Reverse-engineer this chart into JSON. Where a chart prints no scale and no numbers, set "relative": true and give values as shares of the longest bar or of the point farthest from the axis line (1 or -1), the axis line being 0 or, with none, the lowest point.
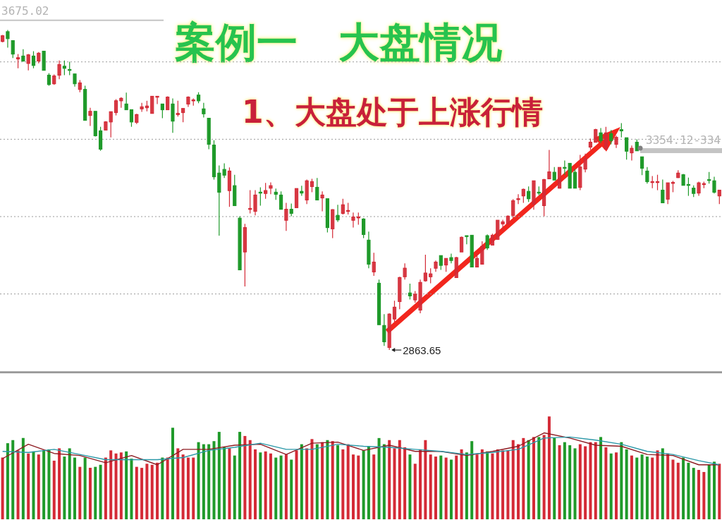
{
  "chart_data": [
    {
      "type": "candlestick",
      "title": "案例一　大盘情况",
      "subtitle": "1、大盘处于上涨行情",
      "categories": [
        null,
        null,
        null,
        null,
        null,
        null,
        null,
        null,
        null,
        null,
        null,
        null,
        null,
        null,
        null,
        null,
        null,
        null,
        null,
        null,
        null,
        null,
        null,
        null,
        null,
        null,
        null,
        null,
        null,
        null,
        null,
        null,
        null,
        null,
        null,
        null,
        null,
        null,
        null,
        null,
        null,
        null,
        null,
        null,
        null,
        null,
        null,
        null,
        null,
        null,
        null,
        null,
        null,
        null,
        null,
        null,
        null,
        null,
        null,
        null,
        null,
        null,
        null,
        null,
        null,
        null,
        null,
        null,
        null,
        null,
        null,
        null,
        null,
        null,
        null,
        null,
        null,
        null,
        null,
        null,
        null,
        null,
        null,
        null,
        null,
        null,
        null,
        null,
        null,
        null,
        null,
        null,
        null,
        null,
        null,
        null,
        null,
        null,
        null,
        null,
        null,
        null,
        null,
        null,
        null,
        null,
        null,
        null,
        null,
        null,
        null,
        null,
        null,
        null,
        null,
        null,
        null,
        null,
        null,
        null,
        null,
        null,
        null,
        null,
        null,
        null,
        null,
        null,
        null,
        null,
        null,
        null,
        null,
        null,
        null,
        null,
        null,
        null,
        null,
        null
      ],
      "ohlc": [
        [
          3623,
          3639,
          3621,
          3637
        ],
        [
          3647,
          3651,
          3608,
          3630
        ],
        [
          3625,
          3625,
          3582,
          3592
        ],
        [
          3580,
          3592,
          3557,
          3583
        ],
        [
          3587,
          3604,
          3573,
          3575
        ],
        [
          3569,
          3592,
          3552,
          3590
        ],
        [
          3587,
          3599,
          3557,
          3564
        ],
        [
          3575,
          3597,
          3569,
          3594
        ],
        [
          3599,
          3599,
          3552,
          3552
        ],
        [
          3540,
          3545,
          3514,
          3517
        ],
        [
          3519,
          3542,
          3516,
          3538
        ],
        [
          3540,
          3576,
          3530,
          3566
        ],
        [
          3562,
          3576,
          3540,
          3557
        ],
        [
          3554,
          3573,
          3540,
          3552
        ],
        [
          3543,
          3543,
          3512,
          3519
        ],
        [
          3505,
          3528,
          3498,
          3521
        ],
        [
          3505,
          3514,
          3429,
          3429
        ],
        [
          3441,
          3460,
          3415,
          3451
        ],
        [
          3451,
          3451,
          3389,
          3391
        ],
        [
          3403,
          3413,
          3354,
          3358
        ],
        [
          3405,
          3427,
          3405,
          3425
        ],
        [
          3425,
          3450,
          3387,
          3450
        ],
        [
          3448,
          3481,
          3441,
          3477
        ],
        [
          3477,
          3486,
          3460,
          3483
        ],
        [
          3469,
          3497,
          3455,
          3455
        ],
        [
          3455,
          3455,
          3413,
          3425
        ],
        [
          3424,
          3445,
          3420,
          3443
        ],
        [
          3457,
          3472,
          3450,
          3462
        ],
        [
          3460,
          3477,
          3451,
          3464
        ],
        [
          3446,
          3488,
          3446,
          3488
        ],
        [
          3488,
          3488,
          3469,
          3488
        ],
        [
          3469,
          3469,
          3434,
          3455
        ],
        [
          3455,
          3488,
          3455,
          3486
        ],
        [
          3469,
          3483,
          3398,
          3427
        ],
        [
          3443,
          3477,
          3438,
          3446
        ],
        [
          3448,
          3458,
          3424,
          3458
        ],
        [
          3469,
          3488,
          3462,
          3486
        ],
        [
          3477,
          3483,
          3465,
          3479
        ],
        [
          3491,
          3498,
          3471,
          3477
        ],
        [
          3457,
          3472,
          3436,
          3445
        ],
        [
          3434,
          3434,
          3358,
          3370
        ],
        [
          3368,
          3380,
          3283,
          3290
        ],
        [
          3299,
          3318,
          3145,
          3252
        ],
        [
          3308,
          3323,
          3287,
          3294
        ],
        [
          3256,
          3313,
          3216,
          3304
        ],
        [
          3268,
          3295,
          3219,
          3219
        ],
        [
          3188,
          3193,
          3061,
          3061
        ],
        [
          3105,
          3174,
          3020,
          3165
        ],
        [
          3210,
          3257,
          3200,
          3212
        ],
        [
          3205,
          3257,
          3195,
          3245
        ],
        [
          3252,
          3264,
          3219,
          3250
        ],
        [
          3249,
          3275,
          3236,
          3256
        ],
        [
          3262,
          3276,
          3247,
          3268
        ],
        [
          3252,
          3261,
          3233,
          3247
        ],
        [
          3245,
          3254,
          3210,
          3210
        ],
        [
          3183,
          3226,
          3157,
          3210
        ],
        [
          3210,
          3224,
          3193,
          3200
        ],
        [
          3214,
          3261,
          3214,
          3261
        ],
        [
          3254,
          3268,
          3243,
          3250
        ],
        [
          3233,
          3283,
          3223,
          3280
        ],
        [
          3266,
          3285,
          3252,
          3278
        ],
        [
          3264,
          3287,
          3233,
          3233
        ],
        [
          3238,
          3254,
          3205,
          3245
        ],
        [
          3236,
          3236,
          3153,
          3165
        ],
        [
          3162,
          3210,
          3139,
          3209
        ],
        [
          3195,
          3221,
          3179,
          3184
        ],
        [
          3200,
          3236,
          3197,
          3221
        ],
        [
          3205,
          3226,
          3197,
          3207
        ],
        [
          3183,
          3202,
          3165,
          3191
        ],
        [
          3190,
          3202,
          3172,
          3191
        ],
        [
          3186,
          3188,
          3139,
          3148
        ],
        [
          3134,
          3155,
          3065,
          3075
        ],
        [
          3056,
          3103,
          3046,
          3080
        ],
        [
          3028,
          3037,
          2926,
          2926
        ],
        [
          2924,
          2952,
          2874,
          2884
        ],
        [
          2870,
          2954,
          2863.65,
          2952
        ],
        [
          2940,
          2985,
          2933,
          2969
        ],
        [
          2983,
          3044,
          2964,
          3042
        ],
        [
          3044,
          3077,
          3037,
          3065
        ],
        [
          3004,
          3027,
          2988,
          2997
        ],
        [
          2987,
          3009,
          2980,
          3001
        ],
        [
          2962,
          3037,
          2954,
          3030
        ],
        [
          3034,
          3098,
          3032,
          3053
        ],
        [
          3044,
          3065,
          3028,
          3051
        ],
        [
          3065,
          3084,
          3056,
          3080
        ],
        [
          3096,
          3096,
          3061,
          3072
        ],
        [
          3073,
          3089,
          3056,
          3089
        ],
        [
          3091,
          3101,
          3077,
          3084
        ],
        [
          3042,
          3093,
          3042,
          3091
        ],
        [
          3105,
          3143,
          3105,
          3141
        ],
        [
          3145,
          3145,
          3124,
          3143
        ],
        [
          3146,
          3146,
          3068,
          3068
        ],
        [
          3068,
          3101,
          3067,
          3089
        ],
        [
          3075,
          3131,
          3075,
          3119
        ],
        [
          3145,
          3148,
          3110,
          3115
        ],
        [
          3122,
          3150,
          3122,
          3146
        ],
        [
          3136,
          3183,
          3136,
          3183
        ],
        [
          3174,
          3184,
          3158,
          3179
        ],
        [
          3174,
          3195,
          3171,
          3193
        ],
        [
          3195,
          3235,
          3188,
          3231
        ],
        [
          3235,
          3247,
          3223,
          3236
        ],
        [
          3243,
          3261,
          3226,
          3259
        ],
        [
          3254,
          3266,
          3228,
          3236
        ],
        [
          3223,
          3280,
          3209,
          3280
        ],
        [
          3252,
          3266,
          3245,
          3250
        ],
        [
          3219,
          3285,
          3193,
          3283
        ],
        [
          3285,
          3356,
          3285,
          3302
        ],
        [
          3301,
          3314,
          3282,
          3282
        ],
        [
          3262,
          3313,
          3261,
          3313
        ],
        [
          3313,
          3330,
          3295,
          3311
        ],
        [
          3323,
          3323,
          3262,
          3262
        ],
        [
          3301,
          3309,
          3262,
          3262
        ],
        [
          3264,
          3344,
          3257,
          3314
        ],
        [
          3309,
          3347,
          3301,
          3335
        ],
        [
          3363,
          3384,
          3356,
          3375
        ],
        [
          3375,
          3408,
          3375,
          3406
        ],
        [
          3398,
          3410,
          3373,
          3379
        ],
        [
          3358,
          3413,
          3358,
          3398
        ],
        [
          3396,
          3405,
          3370,
          3379
        ],
        [
          3370,
          3391,
          3361,
          3387
        ],
        [
          3406,
          3422,
          3387,
          3403
        ],
        [
          3386,
          3386,
          3332,
          3353
        ],
        [
          3349,
          3367,
          3330,
          3360
        ],
        [
          3375,
          3382,
          3354,
          3354
        ],
        [
          3339,
          3339,
          3294,
          3311
        ],
        [
          3304,
          3314,
          3273,
          3278
        ],
        [
          3276,
          3292,
          3262,
          3278
        ],
        [
          3276,
          3295,
          3257,
          3278
        ],
        [
          3257,
          3283,
          3226,
          3226
        ],
        [
          3235,
          3275,
          3223,
          3275
        ],
        [
          3276,
          3280,
          3252,
          3276
        ],
        [
          3288,
          3306,
          3287,
          3299
        ],
        [
          3295,
          3297,
          3269,
          3269
        ],
        [
          3271,
          3288,
          3243,
          3269
        ],
        [
          3262,
          3269,
          3240,
          3249
        ],
        [
          3250,
          3278,
          3243,
          3275
        ],
        [
          3271,
          3278,
          3262,
          3273
        ],
        [
          3283,
          3302,
          3273,
          3282
        ],
        [
          3280,
          3290,
          3249,
          3252
        ],
        [
          3243,
          3257,
          3223,
          3257
        ]
      ],
      "colors": [
        "#d42a36",
        "#1f9a2a",
        "#1f9a2a",
        "#d42a36",
        "#1f9a2a",
        "#d42a36",
        "#1f9a2a",
        "#d42a36",
        "#1f9a2a",
        "#1f9a2a",
        "#d42a36",
        "#d42a36",
        "#1f9a2a",
        "#1f9a2a",
        "#1f9a2a",
        "#d42a36",
        "#1f9a2a",
        "#d42a36",
        "#1f9a2a",
        "#1f9a2a",
        "#d42a36",
        "#d42a36",
        "#d42a36",
        "#d42a36",
        "#1f9a2a",
        "#1f9a2a",
        "#d42a36",
        "#d42a36",
        "#d42a36",
        "#d42a36",
        "#d42a36",
        "#1f9a2a",
        "#d42a36",
        "#1f9a2a",
        "#d42a36",
        "#d42a36",
        "#d42a36",
        "#d42a36",
        "#1f9a2a",
        "#1f9a2a",
        "#1f9a2a",
        "#1f9a2a",
        "#1f9a2a",
        "#1f9a2a",
        "#d42a36",
        "#1f9a2a",
        "#1f9a2a",
        "#d42a36",
        "#d42a36",
        "#d42a36",
        "#1f9a2a",
        "#d42a36",
        "#d42a36",
        "#1f9a2a",
        "#1f9a2a",
        "#d42a36",
        "#1f9a2a",
        "#d42a36",
        "#1f9a2a",
        "#d42a36",
        "#d42a36",
        "#1f9a2a",
        "#d42a36",
        "#1f9a2a",
        "#d42a36",
        "#1f9a2a",
        "#d42a36",
        "#d42a36",
        "#d42a36",
        "#d42a36",
        "#1f9a2a",
        "#1f9a2a",
        "#d42a36",
        "#1f9a2a",
        "#1f9a2a",
        "#d42a36",
        "#d42a36",
        "#d42a36",
        "#d42a36",
        "#1f9a2a",
        "#d42a36",
        "#d42a36",
        "#d42a36",
        "#d42a36",
        "#d42a36",
        "#1f9a2a",
        "#d42a36",
        "#1f9a2a",
        "#d42a36",
        "#d42a36",
        "#1f9a2a",
        "#1f9a2a",
        "#d42a36",
        "#d42a36",
        "#1f9a2a",
        "#d42a36",
        "#d42a36",
        "#d42a36",
        "#d42a36",
        "#d42a36",
        "#d42a36",
        "#d42a36",
        "#1f9a2a",
        "#d42a36",
        "#1f9a2a",
        "#d42a36",
        "#d42a36",
        "#1f9a2a",
        "#d42a36",
        "#1f9a2a",
        "#1f9a2a",
        "#1f9a2a",
        "#d42a36",
        "#d42a36",
        "#d42a36",
        "#d42a36",
        "#1f9a2a",
        "#d42a36",
        "#1f9a2a",
        "#d42a36",
        "#1f9a2a",
        "#1f9a2a",
        "#d42a36",
        "#1f9a2a",
        "#1f9a2a",
        "#1f9a2a",
        "#d42a36",
        "#d42a36",
        "#1f9a2a",
        "#d42a36",
        "#d42a36",
        "#d42a36",
        "#1f9a2a",
        "#1f9a2a",
        "#1f9a2a",
        "#d42a36",
        "#d42a36",
        "#1f9a2a",
        "#1f9a2a",
        "#d42a36"
      ],
      "ylim": [
        2810,
        3725
      ],
      "yticks": [
        {
          "value": 3003,
          "label": null
        },
        {
          "value": 3193,
          "label": null
        },
        {
          "value": 3383,
          "label": null
        },
        {
          "value": 3573,
          "label": null
        }
      ],
      "grid": "y",
      "ref_lines": [
        {
          "axis": "y",
          "value": 3675.02,
          "label": "3675.02",
          "color": "#c4c4c4"
        },
        {
          "axis": "y",
          "value": 3354.12,
          "label": "3354.12-334",
          "color": "#c4c4c4"
        }
      ],
      "annotations": [
        "2863.65"
      ]
    },
    {
      "type": "bar",
      "relative": true,
      "categories": [
        null,
        null,
        null,
        null,
        null,
        null,
        null,
        null,
        null,
        null,
        null,
        null,
        null,
        null,
        null,
        null,
        null,
        null,
        null,
        null,
        null,
        null,
        null,
        null,
        null,
        null,
        null,
        null,
        null,
        null,
        null,
        null,
        null,
        null,
        null,
        null,
        null,
        null,
        null,
        null,
        null,
        null,
        null,
        null,
        null,
        null,
        null,
        null,
        null,
        null,
        null,
        null,
        null,
        null,
        null,
        null,
        null,
        null,
        null,
        null,
        null,
        null,
        null,
        null,
        null,
        null,
        null,
        null,
        null,
        null,
        null,
        null,
        null,
        null,
        null,
        null,
        null,
        null,
        null,
        null,
        null,
        null,
        null,
        null,
        null,
        null,
        null,
        null,
        null,
        null,
        null,
        null,
        null,
        null,
        null,
        null,
        null,
        null,
        null,
        null,
        null,
        null,
        null,
        null,
        null,
        null,
        null,
        null,
        null,
        null,
        null,
        null,
        null,
        null,
        null,
        null,
        null,
        null,
        null,
        null,
        null,
        null,
        null,
        null,
        null,
        null,
        null,
        null,
        null,
        null,
        null,
        null,
        null,
        null,
        null,
        null,
        null,
        null,
        null,
        null
      ],
      "series": [
        {
          "type": "bar",
          "values": [
            0.6,
            0.74,
            0.77,
            0.67,
            0.79,
            0.64,
            0.66,
            0.63,
            0.67,
            0.68,
            0.57,
            0.69,
            0.61,
            0.69,
            0.6,
            0.51,
            0.6,
            0.5,
            0.51,
            0.53,
            0.6,
            0.67,
            0.64,
            0.65,
            0.66,
            0.59,
            0.51,
            0.5,
            0.54,
            0.53,
            0.55,
            0.6,
            0.6,
            0.89,
            0.69,
            0.63,
            0.6,
            0.6,
            0.75,
            0.73,
            0.73,
            0.76,
            0.85,
            0.7,
            0.69,
            0.62,
            0.85,
            0.81,
            0.77,
            0.68,
            0.65,
            0.66,
            0.64,
            0.6,
            0.62,
            0.63,
            0.58,
            0.67,
            0.73,
            0.69,
            0.78,
            0.73,
            0.75,
            0.77,
            0.76,
            0.72,
            0.68,
            0.73,
            0.63,
            0.62,
            0.67,
            0.71,
            0.63,
            0.79,
            0.73,
            0.77,
            0.69,
            0.77,
            0.7,
            0.63,
            0.54,
            0.68,
            0.77,
            0.63,
            0.61,
            0.62,
            0.6,
            0.58,
            0.62,
            0.68,
            0.65,
            0.76,
            0.63,
            0.68,
            0.66,
            0.64,
            0.68,
            0.67,
            0.67,
            0.77,
            0.73,
            0.79,
            0.77,
            0.8,
            0.8,
            0.82,
            1,
            0.79,
            0.72,
            0.75,
            0.72,
            0.69,
            0.73,
            0.71,
            0.75,
            0.75,
            0.8,
            0.7,
            0.64,
            0.65,
            0.75,
            0.68,
            0.62,
            0.6,
            0.63,
            0.61,
            0.6,
            0.67,
            0.69,
            0.64,
            0.58,
            0.55,
            0.6,
            0.55,
            0.5,
            0.48,
            0.46,
            0.53,
            0.56,
            0.54
          ],
          "colors": [
            "#d42a36",
            "#1f9a2a",
            "#1f9a2a",
            "#d42a36",
            "#1f9a2a",
            "#d42a36",
            "#1f9a2a",
            "#d42a36",
            "#1f9a2a",
            "#1f9a2a",
            "#d42a36",
            "#d42a36",
            "#1f9a2a",
            "#1f9a2a",
            "#1f9a2a",
            "#d42a36",
            "#1f9a2a",
            "#d42a36",
            "#1f9a2a",
            "#1f9a2a",
            "#d42a36",
            "#d42a36",
            "#d42a36",
            "#d42a36",
            "#1f9a2a",
            "#1f9a2a",
            "#d42a36",
            "#d42a36",
            "#d42a36",
            "#d42a36",
            "#d42a36",
            "#1f9a2a",
            "#d42a36",
            "#1f9a2a",
            "#d42a36",
            "#d42a36",
            "#d42a36",
            "#d42a36",
            "#1f9a2a",
            "#1f9a2a",
            "#1f9a2a",
            "#1f9a2a",
            "#1f9a2a",
            "#1f9a2a",
            "#d42a36",
            "#1f9a2a",
            "#1f9a2a",
            "#d42a36",
            "#d42a36",
            "#d42a36",
            "#1f9a2a",
            "#d42a36",
            "#d42a36",
            "#1f9a2a",
            "#1f9a2a",
            "#d42a36",
            "#1f9a2a",
            "#d42a36",
            "#1f9a2a",
            "#d42a36",
            "#d42a36",
            "#1f9a2a",
            "#d42a36",
            "#1f9a2a",
            "#d42a36",
            "#1f9a2a",
            "#d42a36",
            "#d42a36",
            "#d42a36",
            "#d42a36",
            "#1f9a2a",
            "#1f9a2a",
            "#d42a36",
            "#1f9a2a",
            "#1f9a2a",
            "#d42a36",
            "#d42a36",
            "#d42a36",
            "#d42a36",
            "#1f9a2a",
            "#d42a36",
            "#d42a36",
            "#d42a36",
            "#d42a36",
            "#d42a36",
            "#1f9a2a",
            "#d42a36",
            "#1f9a2a",
            "#d42a36",
            "#d42a36",
            "#1f9a2a",
            "#1f9a2a",
            "#d42a36",
            "#d42a36",
            "#1f9a2a",
            "#d42a36",
            "#d42a36",
            "#d42a36",
            "#d42a36",
            "#d42a36",
            "#d42a36",
            "#d42a36",
            "#1f9a2a",
            "#d42a36",
            "#1f9a2a",
            "#d42a36",
            "#d42a36",
            "#1f9a2a",
            "#d42a36",
            "#1f9a2a",
            "#1f9a2a",
            "#1f9a2a",
            "#d42a36",
            "#d42a36",
            "#d42a36",
            "#d42a36",
            "#1f9a2a",
            "#d42a36",
            "#1f9a2a",
            "#d42a36",
            "#1f9a2a",
            "#1f9a2a",
            "#d42a36",
            "#1f9a2a",
            "#1f9a2a",
            "#1f9a2a",
            "#d42a36",
            "#d42a36",
            "#1f9a2a",
            "#d42a36",
            "#d42a36",
            "#d42a36",
            "#1f9a2a",
            "#1f9a2a",
            "#1f9a2a",
            "#d42a36",
            "#d42a36",
            "#1f9a2a",
            "#1f9a2a",
            "#d42a36"
          ]
        },
        {
          "type": "line",
          "color": "#8e1b22",
          "values": [
            0.59,
            null,
            null,
            null,
            null,
            0.73,
            null,
            null,
            null,
            null,
            0.64,
            null,
            null,
            null,
            null,
            0.62,
            null,
            null,
            null,
            null,
            0.55,
            null,
            null,
            null,
            null,
            0.62,
            null,
            null,
            null,
            null,
            0.53,
            null,
            null,
            null,
            null,
            0.68,
            null,
            null,
            null,
            null,
            0.68,
            null,
            null,
            null,
            null,
            0.72,
            null,
            null,
            null,
            null,
            0.73,
            null,
            null,
            null,
            null,
            0.63,
            null,
            null,
            null,
            null,
            0.74,
            null,
            null,
            null,
            null,
            0.75,
            null,
            null,
            null,
            null,
            0.67,
            null,
            null,
            null,
            null,
            0.72,
            null,
            null,
            null,
            null,
            0.66,
            null,
            null,
            null,
            null,
            0.66,
            null,
            null,
            null,
            null,
            0.62,
            null,
            null,
            null,
            null,
            0.66,
            null,
            null,
            null,
            null,
            0.71,
            null,
            null,
            null,
            null,
            0.84,
            null,
            null,
            null,
            null,
            0.79,
            null,
            null,
            null,
            null,
            0.72,
            null,
            null,
            null,
            null,
            0.71,
            null,
            null,
            null,
            null,
            0.63,
            null,
            null,
            null,
            null,
            0.62,
            null,
            null,
            null,
            null,
            0.53,
            null,
            null,
            null,
            0.53
          ]
        },
        {
          "type": "line",
          "color": "#2a98a8",
          "values": [
            0.66,
            null,
            null,
            null,
            null,
            0.65,
            null,
            null,
            null,
            null,
            0.68,
            null,
            null,
            null,
            null,
            0.63,
            null,
            null,
            null,
            null,
            0.58,
            null,
            null,
            null,
            null,
            0.58,
            null,
            null,
            null,
            null,
            0.58,
            null,
            null,
            null,
            null,
            0.6,
            null,
            null,
            null,
            null,
            0.67,
            null,
            null,
            null,
            null,
            0.7,
            null,
            null,
            null,
            null,
            0.74,
            null,
            null,
            null,
            null,
            0.68,
            null,
            null,
            null,
            null,
            0.68,
            null,
            null,
            null,
            null,
            0.73,
            null,
            null,
            null,
            null,
            0.71,
            null,
            null,
            null,
            null,
            0.7,
            null,
            null,
            null,
            null,
            0.68,
            null,
            null,
            null,
            null,
            0.66,
            null,
            null,
            null,
            null,
            0.63,
            null,
            null,
            null,
            null,
            0.65,
            null,
            null,
            null,
            null,
            0.68,
            null,
            null,
            null,
            null,
            0.79,
            null,
            null,
            null,
            null,
            0.8,
            null,
            null,
            null,
            null,
            0.77,
            null,
            null,
            null,
            null,
            0.73,
            null,
            null,
            null,
            null,
            0.66,
            null,
            null,
            null,
            null,
            0.63,
            null,
            null,
            null,
            null,
            0.57,
            null,
            null,
            null,
            0.53
          ]
        }
      ]
    }
  ]
}
